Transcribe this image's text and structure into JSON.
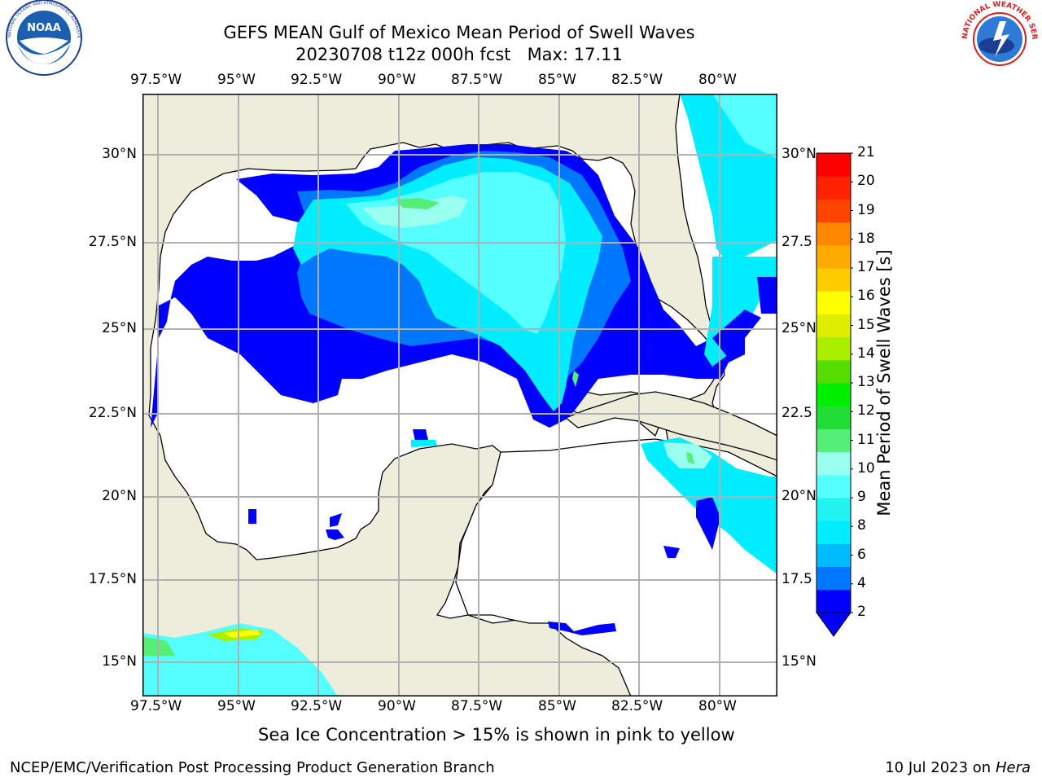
{
  "header": {
    "title_line1": "GEFS MEAN Gulf of Mexico Mean Period of Swell Waves",
    "title_line2": "20230708 t12z 000h fcst   Max: 17.11"
  },
  "logos": {
    "left": "NOAA",
    "left_ring_text": "NATIONAL OCEANIC AND ATMOSPHERIC ADMINISTRATION · U.S. DEPARTMENT OF COMMERCE",
    "right_ring_text": "NATIONAL WEATHER SERVICE"
  },
  "map": {
    "lon_labels": [
      "97.5°W",
      "95°W",
      "92.5°W",
      "90°W",
      "87.5°W",
      "85°W",
      "82.5°W",
      "80°W"
    ],
    "lat_labels_left": [
      "30°N",
      "27.5°N",
      "25°N",
      "22.5°N",
      "20°N",
      "17.5°N",
      "15°N"
    ],
    "lat_labels_right": [
      "30°N",
      "27.5",
      "25°N",
      "22.5",
      "20°N",
      "17.5",
      "15°N"
    ],
    "colors": {
      "land": "#eeeddc",
      "water_zero": "#ffffff",
      "grid": "#b0b0b0",
      "coast": "#000000"
    }
  },
  "colorbar": {
    "label": "Mean Period of Swell Waves [s]",
    "ticks": [
      "2",
      "4",
      "6",
      "8",
      "9",
      "10",
      "11",
      "12",
      "13",
      "14",
      "15",
      "16",
      "17",
      "18",
      "19",
      "20",
      "21"
    ],
    "bins": [
      {
        "from": 2,
        "to": 3,
        "color": "#0000ff"
      },
      {
        "from": 3,
        "to": 4,
        "color": "#0077ff"
      },
      {
        "from": 4,
        "to": 5,
        "color": "#00bbff"
      },
      {
        "from": 5,
        "to": 6,
        "color": "#00eeff"
      },
      {
        "from": 6,
        "to": 7,
        "color": "#22f2f2"
      },
      {
        "from": 7,
        "to": 8,
        "color": "#55ffff"
      },
      {
        "from": 8,
        "to": 9,
        "color": "#99ffee"
      },
      {
        "from": 9,
        "to": 10,
        "color": "#55ee77"
      },
      {
        "from": 10,
        "to": 11,
        "color": "#22dd33"
      },
      {
        "from": 11,
        "to": 12,
        "color": "#00ee00"
      },
      {
        "from": 12,
        "to": 13,
        "color": "#55dd00"
      },
      {
        "from": 13,
        "to": 14,
        "color": "#aaee00"
      },
      {
        "from": 14,
        "to": 15,
        "color": "#ddee00"
      },
      {
        "from": 15,
        "to": 16,
        "color": "#ffff00"
      },
      {
        "from": 16,
        "to": 17,
        "color": "#ffcc00"
      },
      {
        "from": 17,
        "to": 18,
        "color": "#ffaa00"
      },
      {
        "from": 18,
        "to": 19,
        "color": "#ff8800"
      },
      {
        "from": 19,
        "to": 20,
        "color": "#ff4400"
      },
      {
        "from": 20,
        "to": 21,
        "color": "#ff2200"
      },
      {
        "from": 21,
        "to": 22,
        "color": "#ff0000"
      }
    ],
    "extend_color": "#0000ff"
  },
  "notes": {
    "sea_ice": "Sea Ice Concentration > 15% is shown in pink to yellow"
  },
  "footer": {
    "left": "NCEP/EMC/Verification Post Processing Product Generation Branch",
    "right_prefix": "10 Jul 2023 on ",
    "right_machine": "Hera"
  }
}
